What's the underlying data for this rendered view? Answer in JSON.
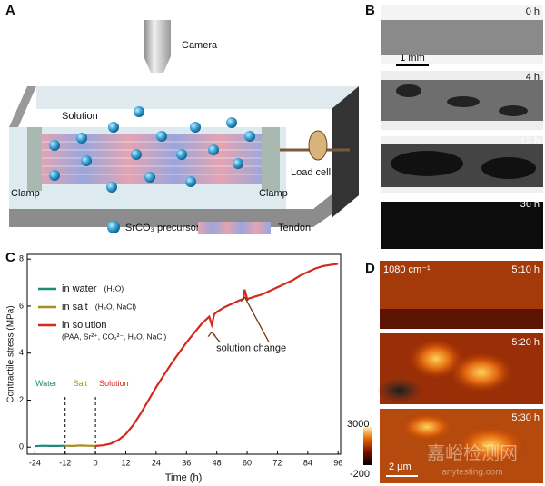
{
  "panel_a": {
    "label": "A",
    "camera": "Camera",
    "solution": "Solution",
    "load_cell": "Load cell",
    "clamps": [
      "Clamp",
      "Clamp"
    ],
    "legend": [
      "SrCO₃ precursor",
      "Tendon"
    ]
  },
  "panel_b": {
    "label": "B",
    "times": [
      "0 h",
      "4 h",
      "12 h",
      "36 h"
    ],
    "scale_bar": "1 mm"
  },
  "chart_data": {
    "type": "line",
    "panel_label": "C",
    "xlabel": "Time (h)",
    "ylabel": "Contractile stress (MPa)",
    "xlim": [
      -27,
      97
    ],
    "ylim": [
      -0.3,
      8.2
    ],
    "xticks": [
      -24,
      -12,
      0,
      12,
      24,
      36,
      48,
      60,
      72,
      84,
      96
    ],
    "yticks": [
      0,
      2,
      4,
      6,
      8
    ],
    "dividers": [
      -12,
      0
    ],
    "series": [
      {
        "name": "in water",
        "detail": "(H₂O)",
        "phase": "Water",
        "color": "#1f8a78",
        "x": [
          -24,
          -21,
          -18,
          -15,
          -12
        ],
        "values": [
          0.04,
          0.06,
          0.05,
          0.05,
          0.06
        ]
      },
      {
        "name": "in salt",
        "detail": "(H₂O, NaCl)",
        "phase": "Salt",
        "color": "#a88d1e",
        "x": [
          -12,
          -9,
          -6,
          -3,
          0
        ],
        "values": [
          0.06,
          0.05,
          0.07,
          0.06,
          0.05
        ]
      },
      {
        "name": "in solution",
        "detail": "(PAA, Sr²⁺, CO₃²⁻, H₂O, NaCl)",
        "phase": "Solution",
        "color": "#d4291b",
        "x": [
          0,
          3,
          6,
          9,
          12,
          15,
          18,
          21,
          24,
          27,
          30,
          33,
          36,
          39,
          42,
          45,
          46,
          47,
          48,
          51,
          54,
          57,
          58.5,
          59,
          60,
          63,
          66,
          69,
          72,
          75,
          78,
          81,
          84,
          87,
          90,
          93,
          96
        ],
        "values": [
          0.05,
          0.08,
          0.15,
          0.3,
          0.55,
          0.95,
          1.45,
          2.0,
          2.55,
          3.05,
          3.55,
          4.0,
          4.45,
          4.85,
          5.25,
          5.55,
          5.2,
          5.65,
          5.75,
          5.95,
          6.1,
          6.25,
          6.3,
          6.7,
          6.3,
          6.4,
          6.5,
          6.65,
          6.8,
          6.95,
          7.1,
          7.3,
          7.45,
          7.6,
          7.7,
          7.75,
          7.8
        ]
      }
    ],
    "annotation": "solution change",
    "solution_changes": [
      46,
      59
    ]
  },
  "panel_d": {
    "label": "D",
    "wavenumber": "1080 cm⁻¹",
    "times": [
      "5:10 h",
      "5:20 h",
      "5:30 h"
    ],
    "colorbar": {
      "max": "3000",
      "min": "-200"
    },
    "scale_bar": "2 μm"
  },
  "watermark": [
    "嘉峪检测网",
    "anytesting.com"
  ]
}
